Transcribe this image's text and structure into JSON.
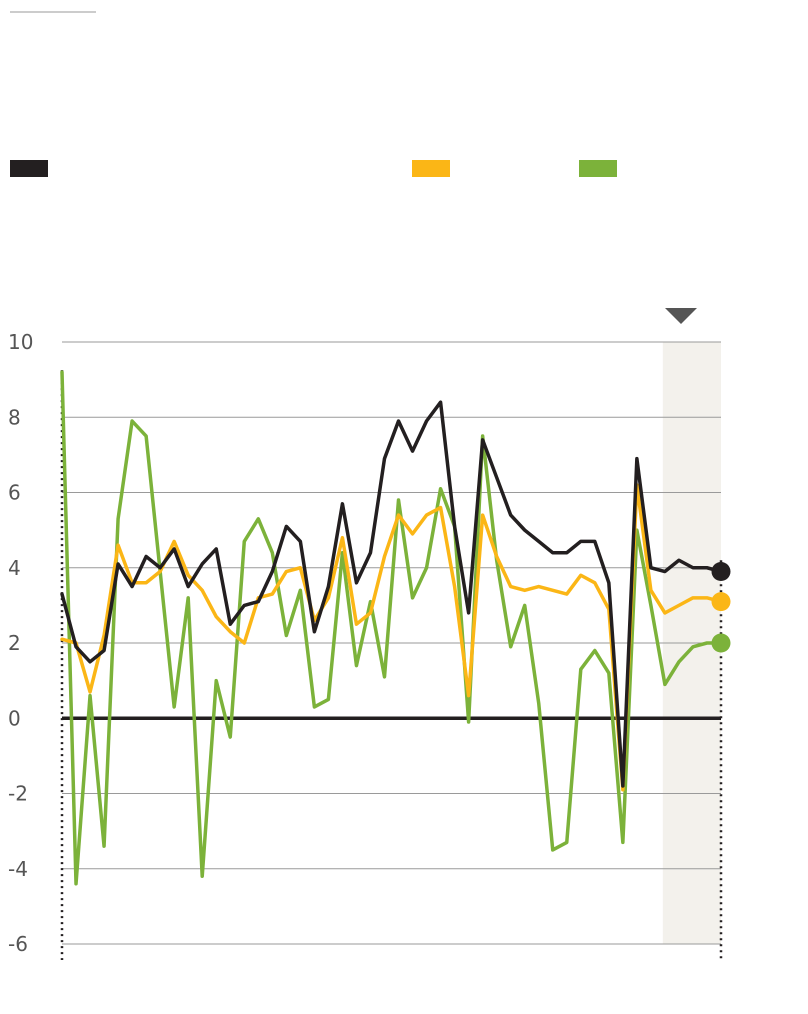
{
  "colors": {
    "black": "#231f20",
    "yellow": "#fbb616",
    "green": "#7cb23a",
    "grid": "#9a9a9a",
    "forecast_band": "#f3f1ec",
    "marker": "#555555"
  },
  "chart_data": {
    "type": "line",
    "title": "",
    "xlabel": "",
    "ylabel": "",
    "ylim": [
      -6,
      10
    ],
    "yticks": [
      10,
      8,
      6,
      4,
      2,
      0,
      -2,
      -4,
      -6
    ],
    "grid": true,
    "forecast_shaded_from_index": 43,
    "legend": {
      "placement": "top"
    },
    "series": [
      {
        "color": "black",
        "values": [
          3.3,
          1.9,
          1.5,
          1.8,
          4.1,
          3.5,
          4.3,
          4.0,
          4.5,
          3.5,
          4.1,
          4.5,
          2.5,
          3.0,
          3.1,
          3.9,
          5.1,
          4.7,
          2.3,
          3.5,
          5.7,
          3.6,
          4.4,
          6.9,
          7.9,
          7.1,
          7.9,
          8.4,
          5.1,
          2.8,
          7.4,
          6.4,
          5.4,
          5.0,
          4.7,
          4.4,
          4.4,
          4.7,
          4.7,
          3.6,
          -1.8,
          6.9,
          4.0,
          3.9,
          4.2,
          4.0,
          4.0,
          3.9
        ]
      },
      {
        "color": "yellow",
        "values": [
          2.1,
          2.0,
          0.7,
          2.2,
          4.6,
          3.6,
          3.6,
          3.9,
          4.7,
          3.8,
          3.4,
          2.7,
          2.3,
          2.0,
          3.2,
          3.3,
          3.9,
          4.0,
          2.6,
          3.2,
          4.8,
          2.5,
          2.8,
          4.3,
          5.4,
          4.9,
          5.4,
          5.6,
          3.5,
          0.6,
          5.4,
          4.3,
          3.5,
          3.4,
          3.5,
          3.4,
          3.3,
          3.8,
          3.6,
          2.9,
          -1.9,
          6.2,
          3.4,
          2.8,
          3.0,
          3.2,
          3.2,
          3.1
        ]
      },
      {
        "color": "green",
        "values": [
          9.2,
          -4.4,
          0.6,
          -3.4,
          5.3,
          7.9,
          7.5,
          3.9,
          0.3,
          3.2,
          -4.2,
          1.0,
          -0.5,
          4.7,
          5.3,
          4.4,
          2.2,
          3.4,
          0.3,
          0.5,
          4.4,
          1.4,
          3.1,
          1.1,
          5.8,
          3.2,
          4.0,
          6.1,
          5.1,
          -0.1,
          7.5,
          4.2,
          1.9,
          3.0,
          0.4,
          -3.5,
          -3.3,
          1.3,
          1.8,
          1.2,
          -3.3,
          5.0,
          3.0,
          0.9,
          1.5,
          1.9,
          2.0,
          2.0
        ]
      }
    ]
  }
}
